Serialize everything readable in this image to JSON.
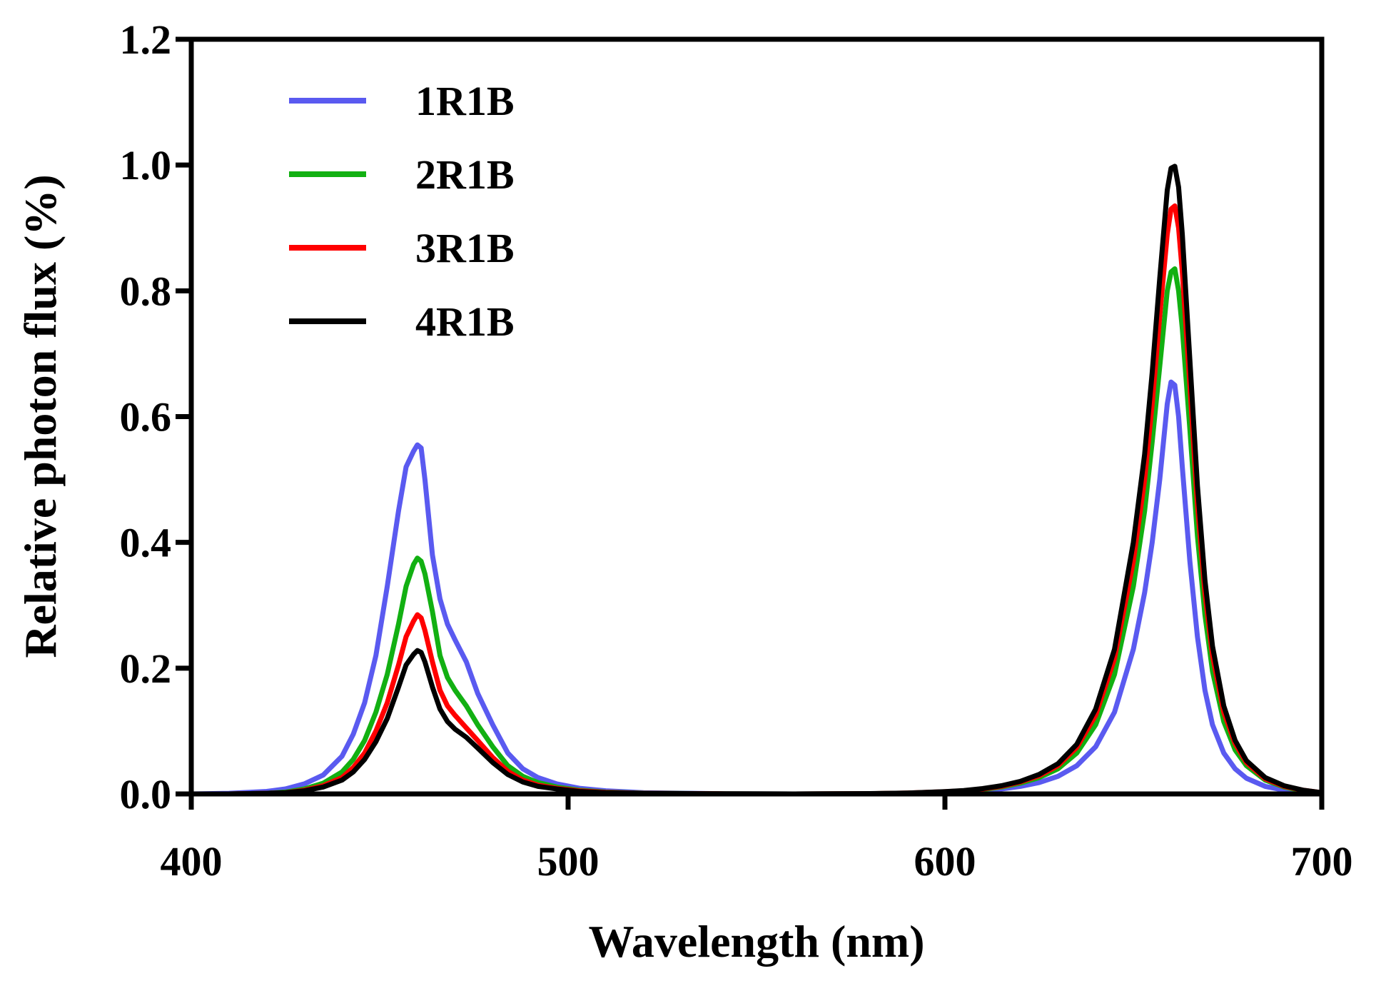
{
  "chart_data": {
    "type": "line",
    "title": "",
    "xlabel": "Wavelength (nm)",
    "ylabel": "Relative photon flux (%)",
    "xlim": [
      400,
      700
    ],
    "ylim": [
      0,
      1.2
    ],
    "x_ticks": [
      400,
      500,
      600,
      700
    ],
    "x_tick_labels": [
      "400",
      "500",
      "600",
      "700"
    ],
    "y_ticks": [
      0,
      0.2,
      0.4,
      0.6,
      0.8,
      1.0,
      1.2
    ],
    "y_tick_labels": [
      "0.0",
      "0.2",
      "0.4",
      "0.6",
      "0.8",
      "1.0",
      "1.2"
    ],
    "grid": false,
    "legend_position": "top-left",
    "x": [
      400,
      410,
      420,
      425,
      430,
      435,
      440,
      443,
      446,
      449,
      452,
      455,
      457,
      459,
      460,
      461,
      462,
      464,
      466,
      468,
      470,
      473,
      476,
      480,
      484,
      488,
      492,
      497,
      503,
      510,
      520,
      540,
      560,
      580,
      590,
      600,
      605,
      610,
      615,
      620,
      625,
      630,
      635,
      640,
      645,
      650,
      653,
      655,
      657,
      659,
      660,
      661,
      662,
      663,
      665,
      667,
      669,
      671,
      674,
      677,
      680,
      685,
      690,
      695,
      700
    ],
    "series": [
      {
        "name": "1R1B",
        "color": "#5a5af0",
        "values": [
          0,
          0.001,
          0.004,
          0.008,
          0.016,
          0.03,
          0.06,
          0.095,
          0.145,
          0.22,
          0.33,
          0.45,
          0.52,
          0.545,
          0.555,
          0.55,
          0.5,
          0.38,
          0.31,
          0.27,
          0.245,
          0.21,
          0.16,
          0.11,
          0.065,
          0.04,
          0.026,
          0.016,
          0.009,
          0.005,
          0.002,
          0.0005,
          0,
          0.0003,
          0.0008,
          0.002,
          0.003,
          0.005,
          0.008,
          0.012,
          0.018,
          0.028,
          0.045,
          0.075,
          0.13,
          0.23,
          0.32,
          0.4,
          0.5,
          0.62,
          0.655,
          0.65,
          0.6,
          0.52,
          0.37,
          0.25,
          0.165,
          0.11,
          0.065,
          0.04,
          0.025,
          0.012,
          0.006,
          0.003,
          0.001
        ]
      },
      {
        "name": "2R1B",
        "color": "#12b012",
        "values": [
          0,
          0,
          0.001,
          0.003,
          0.008,
          0.017,
          0.035,
          0.055,
          0.085,
          0.13,
          0.19,
          0.27,
          0.33,
          0.365,
          0.375,
          0.37,
          0.35,
          0.29,
          0.22,
          0.185,
          0.165,
          0.14,
          0.11,
          0.075,
          0.045,
          0.028,
          0.018,
          0.011,
          0.006,
          0.003,
          0.0013,
          0.0003,
          0,
          0.0004,
          0.0012,
          0.003,
          0.0045,
          0.007,
          0.011,
          0.017,
          0.026,
          0.04,
          0.065,
          0.11,
          0.19,
          0.33,
          0.45,
          0.56,
          0.68,
          0.8,
          0.83,
          0.835,
          0.8,
          0.74,
          0.58,
          0.41,
          0.285,
          0.195,
          0.115,
          0.07,
          0.045,
          0.022,
          0.011,
          0.005,
          0.002
        ]
      },
      {
        "name": "3R1B",
        "color": "#ff0000",
        "values": [
          0,
          0,
          0.001,
          0.002,
          0.006,
          0.013,
          0.026,
          0.042,
          0.065,
          0.1,
          0.145,
          0.205,
          0.25,
          0.275,
          0.285,
          0.28,
          0.26,
          0.21,
          0.165,
          0.14,
          0.125,
          0.105,
          0.085,
          0.058,
          0.036,
          0.022,
          0.014,
          0.009,
          0.005,
          0.0025,
          0.001,
          0.0002,
          0,
          0.0005,
          0.0014,
          0.0035,
          0.005,
          0.008,
          0.012,
          0.019,
          0.029,
          0.045,
          0.074,
          0.125,
          0.215,
          0.37,
          0.5,
          0.62,
          0.76,
          0.89,
          0.93,
          0.935,
          0.9,
          0.83,
          0.65,
          0.46,
          0.32,
          0.22,
          0.13,
          0.08,
          0.05,
          0.024,
          0.012,
          0.006,
          0.002
        ]
      },
      {
        "name": "4R1B",
        "color": "#000000",
        "values": [
          0,
          0,
          0.001,
          0.002,
          0.005,
          0.011,
          0.022,
          0.035,
          0.055,
          0.083,
          0.12,
          0.17,
          0.205,
          0.222,
          0.228,
          0.225,
          0.21,
          0.17,
          0.135,
          0.115,
          0.103,
          0.09,
          0.073,
          0.05,
          0.031,
          0.019,
          0.012,
          0.008,
          0.004,
          0.002,
          0.0008,
          0.0002,
          0,
          0.0006,
          0.0015,
          0.0038,
          0.0055,
          0.0085,
          0.013,
          0.02,
          0.031,
          0.048,
          0.079,
          0.135,
          0.23,
          0.4,
          0.54,
          0.67,
          0.82,
          0.96,
          0.995,
          0.998,
          0.965,
          0.89,
          0.69,
          0.49,
          0.34,
          0.235,
          0.14,
          0.085,
          0.053,
          0.026,
          0.013,
          0.006,
          0.002
        ]
      }
    ]
  }
}
